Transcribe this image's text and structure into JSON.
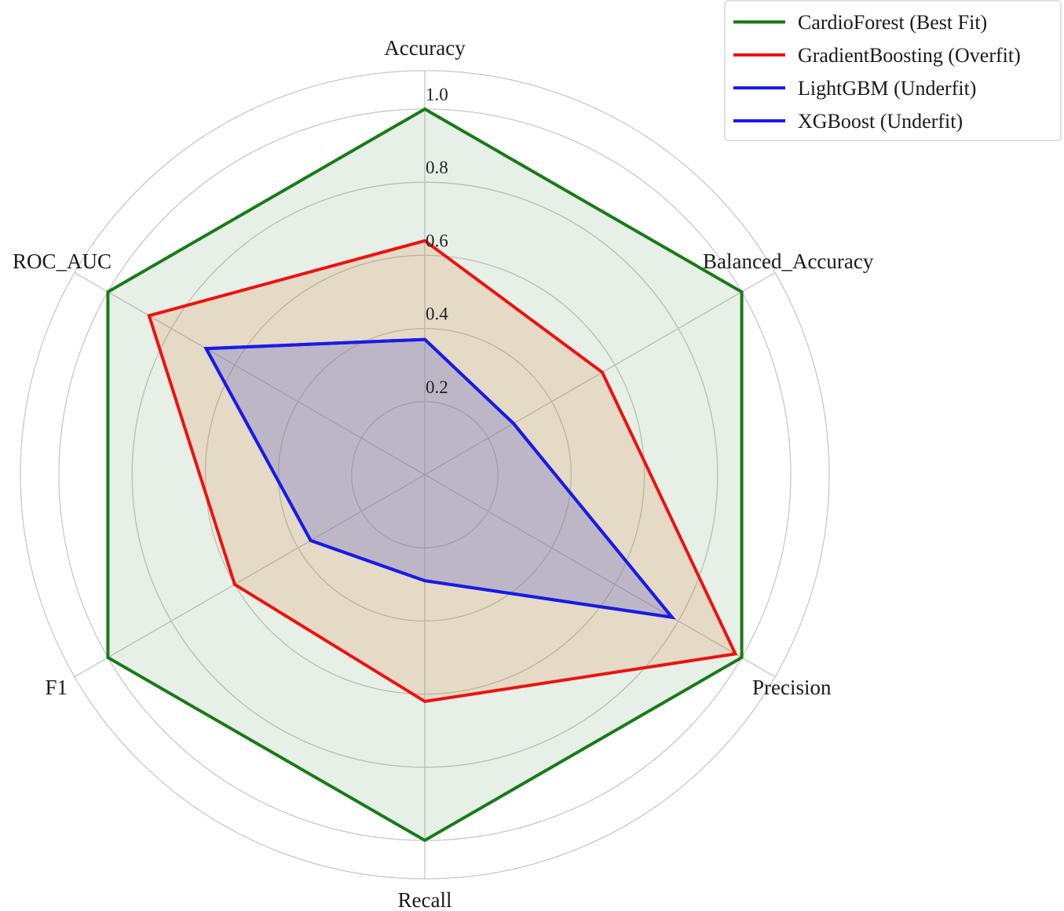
{
  "chart_data": {
    "type": "radar",
    "axes": [
      "Accuracy",
      "Balanced_Accuracy",
      "Precision",
      "Recall",
      "F1",
      "ROC_AUC"
    ],
    "rlim": [
      0,
      1.0
    ],
    "rticks": [
      0.2,
      0.4,
      0.6,
      0.8,
      1.0
    ],
    "rtick_labels": [
      "0.2",
      "0.4",
      "0.6",
      "0.8",
      "1.0"
    ],
    "grid": true,
    "legend_position": "top-right",
    "series": [
      {
        "name": "CardioForest (Best Fit)",
        "color": "#1a7a1a",
        "fill": "#1a7a1a",
        "fill_opacity": 0.11,
        "values": [
          1.0,
          1.0,
          1.0,
          1.0,
          1.0,
          1.0
        ]
      },
      {
        "name": "GradientBoosting (Overfit)",
        "color": "#ee1111",
        "fill": "#e07a3a",
        "fill_opacity": 0.18,
        "values": [
          0.64,
          0.56,
          0.98,
          0.62,
          0.6,
          0.87
        ]
      },
      {
        "name": "LightGBM (Underfit)",
        "color": "#1a1ae6",
        "fill": "#7a7ac8",
        "fill_opacity": 0.2,
        "values": [
          0.37,
          0.28,
          0.78,
          0.29,
          0.36,
          0.69
        ]
      },
      {
        "name": "XGBoost (Underfit)",
        "color": "#1a1ae6",
        "fill": "#7a7ac8",
        "fill_opacity": 0.2,
        "values": [
          0.37,
          0.28,
          0.78,
          0.29,
          0.36,
          0.69
        ]
      }
    ]
  }
}
